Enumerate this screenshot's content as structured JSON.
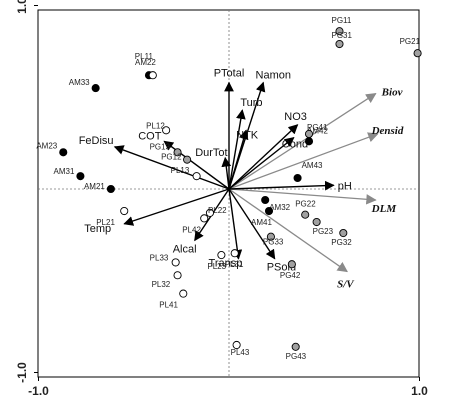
{
  "chart_data": {
    "type": "scatter",
    "title": "",
    "xlabel": "",
    "ylabel": "",
    "xlim": [
      -1.0,
      1.0
    ],
    "ylim": [
      -1.0,
      1.0
    ],
    "x_ticks": [
      "-1.0",
      "1.0"
    ],
    "y_ticks": [
      "1.0",
      "-1.0"
    ],
    "zero_lines": true,
    "point_groups": [
      {
        "group": "AM",
        "marker": "filled black circle",
        "color": "#000000",
        "points": [
          {
            "label": "AM33",
            "x": -0.7,
            "y": 0.55
          },
          {
            "label": "AM22",
            "x": -0.42,
            "y": 0.62
          },
          {
            "label": "AM23",
            "x": -0.87,
            "y": 0.2
          },
          {
            "label": "AM31",
            "x": -0.78,
            "y": 0.07
          },
          {
            "label": "AM21",
            "x": -0.62,
            "y": 0.0
          },
          {
            "label": "AM43",
            "x": 0.36,
            "y": 0.06
          },
          {
            "label": "AM42",
            "x": 0.42,
            "y": 0.26
          },
          {
            "label": "AM32",
            "x": 0.19,
            "y": -0.06
          },
          {
            "label": "AM41",
            "x": 0.21,
            "y": -0.12
          }
        ]
      },
      {
        "group": "PL",
        "marker": "open circle",
        "color": "#ffffff",
        "points": [
          {
            "label": "PL11",
            "x": -0.4,
            "y": 0.62
          },
          {
            "label": "PL12",
            "x": -0.33,
            "y": 0.32
          },
          {
            "label": "PL13",
            "x": -0.17,
            "y": 0.07
          },
          {
            "label": "PL21",
            "x": -0.55,
            "y": -0.12
          },
          {
            "label": "PL22",
            "x": -0.1,
            "y": -0.13
          },
          {
            "label": "PL42",
            "x": -0.13,
            "y": -0.16
          },
          {
            "label": "PL23",
            "x": -0.04,
            "y": -0.36
          },
          {
            "label": "PL31",
            "x": 0.03,
            "y": -0.35
          },
          {
            "label": "PL33",
            "x": -0.28,
            "y": -0.4
          },
          {
            "label": "PL32",
            "x": -0.27,
            "y": -0.47
          },
          {
            "label": "PL41",
            "x": -0.24,
            "y": -0.57
          },
          {
            "label": "PL43",
            "x": 0.04,
            "y": -0.85
          }
        ]
      },
      {
        "group": "PG",
        "marker": "grey circle",
        "color": "#a0a0a0",
        "points": [
          {
            "label": "PG11",
            "x": 0.58,
            "y": 0.86
          },
          {
            "label": "PG31",
            "x": 0.58,
            "y": 0.79
          },
          {
            "label": "PG21",
            "x": 0.99,
            "y": 0.74
          },
          {
            "label": "PG13",
            "x": -0.27,
            "y": 0.2
          },
          {
            "label": "PG12",
            "x": -0.22,
            "y": 0.16
          },
          {
            "label": "PG41",
            "x": 0.42,
            "y": 0.3
          },
          {
            "label": "PG22",
            "x": 0.4,
            "y": -0.14
          },
          {
            "label": "PG23",
            "x": 0.46,
            "y": -0.18
          },
          {
            "label": "PG32",
            "x": 0.6,
            "y": -0.24
          },
          {
            "label": "PG33",
            "x": 0.22,
            "y": -0.26
          },
          {
            "label": "PG42",
            "x": 0.33,
            "y": -0.41
          },
          {
            "label": "PG43",
            "x": 0.35,
            "y": -0.86
          }
        ]
      }
    ],
    "environmental_vectors": {
      "color": "#000000",
      "vectors": [
        {
          "label": "PTotal",
          "x": 0.0,
          "y": 0.58
        },
        {
          "label": "Namon",
          "x": 0.18,
          "y": 0.58
        },
        {
          "label": "Turb",
          "x": 0.07,
          "y": 0.43
        },
        {
          "label": "NTK",
          "x": 0.09,
          "y": 0.32
        },
        {
          "label": "NO3",
          "x": 0.36,
          "y": 0.35
        },
        {
          "label": "Cond",
          "x": 0.34,
          "y": 0.28
        },
        {
          "label": "COT",
          "x": -0.34,
          "y": 0.26
        },
        {
          "label": "FeDisu",
          "x": -0.6,
          "y": 0.23
        },
        {
          "label": "DurTot",
          "x": -0.02,
          "y": 0.17
        },
        {
          "label": "Temp",
          "x": -0.55,
          "y": -0.19
        },
        {
          "label": "Alcal",
          "x": -0.18,
          "y": -0.28
        },
        {
          "label": "Transp",
          "x": 0.05,
          "y": -0.38
        },
        {
          "label": "PSolu",
          "x": 0.24,
          "y": -0.38
        },
        {
          "label": "pH",
          "x": 0.55,
          "y": 0.02
        }
      ]
    },
    "biological_vectors": {
      "color": "#8a8a8a",
      "vectors": [
        {
          "label": "Biov",
          "x": 0.77,
          "y": 0.52
        },
        {
          "label": "Densid",
          "x": 0.78,
          "y": 0.3
        },
        {
          "label": "DLM",
          "x": 0.77,
          "y": -0.06
        },
        {
          "label": "S/V",
          "x": 0.62,
          "y": -0.45
        }
      ]
    }
  }
}
